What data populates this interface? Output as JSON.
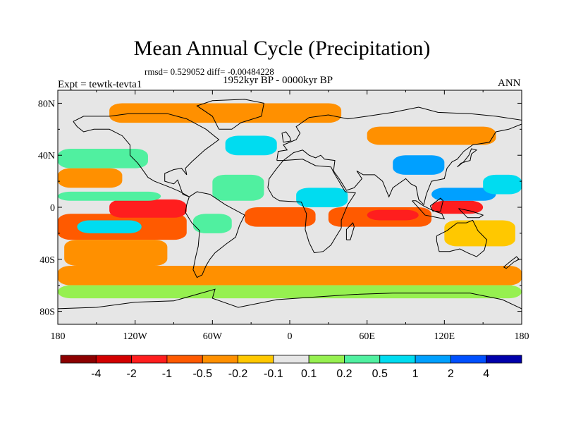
{
  "title": "Mean Annual Cycle (Precipitation)",
  "stats": "rmsd= 0.529052 diff= -0.00484228",
  "period": "1952kyr BP - 0000kyr BP",
  "experiment": "Expt = tewtk-tevta1",
  "season": "ANN",
  "axes": {
    "y_ticks": [
      {
        "label": "80N",
        "lat": 80
      },
      {
        "label": "40N",
        "lat": 40
      },
      {
        "label": "0",
        "lat": 0
      },
      {
        "label": "40S",
        "lat": -40
      },
      {
        "label": "80S",
        "lat": -80
      }
    ],
    "x_ticks": [
      {
        "label": "180",
        "lon": -180
      },
      {
        "label": "120W",
        "lon": -120
      },
      {
        "label": "60W",
        "lon": -60
      },
      {
        "label": "0",
        "lon": 0
      },
      {
        "label": "60E",
        "lon": 60
      },
      {
        "label": "120E",
        "lon": 120
      },
      {
        "label": "180",
        "lon": 180
      }
    ]
  },
  "colorbar": {
    "colors": [
      "#8c0000",
      "#d20000",
      "#ff1e1e",
      "#ff5a00",
      "#ff9000",
      "#ffc800",
      "#e6e6e6",
      "#96f050",
      "#50f0a0",
      "#00dcf0",
      "#00a0ff",
      "#0050ff",
      "#0000aa"
    ],
    "labels": [
      "-4",
      "-2",
      "-1",
      "-0.5",
      "-0.2",
      "-0.1",
      "0.1",
      "0.2",
      "0.5",
      "1",
      "2",
      "4"
    ]
  },
  "map_fields": {
    "background": "#e6e6e6",
    "coast": "#000000",
    "dry_bands": [
      {
        "name": "south-pacific-dry",
        "color": "#ff5a00",
        "lon0": -180,
        "lon1": -80,
        "lat0": -25,
        "lat1": -5
      },
      {
        "name": "south-pacific-dry-2",
        "color": "#ff9000",
        "lon0": -175,
        "lon1": -95,
        "lat0": -45,
        "lat1": -25
      },
      {
        "name": "east-pacific-dry",
        "color": "#ff1e1e",
        "lon0": -140,
        "lon1": -80,
        "lat0": -8,
        "lat1": 6
      },
      {
        "name": "south-atlantic-dry",
        "color": "#ff5a00",
        "lon0": -35,
        "lon1": 20,
        "lat0": -15,
        "lat1": 0
      },
      {
        "name": "indian-ocean-dry",
        "color": "#ff5a00",
        "lon0": 30,
        "lon1": 110,
        "lat0": -15,
        "lat1": 0
      },
      {
        "name": "indian-ocean-dry-2",
        "color": "#ff1e1e",
        "lon0": 60,
        "lon1": 100,
        "lat0": -10,
        "lat1": -2
      },
      {
        "name": "southern-ocean-dry",
        "color": "#ff9000",
        "lon0": -180,
        "lon1": 180,
        "lat0": -60,
        "lat1": -45
      },
      {
        "name": "north-pacific-dry",
        "color": "#ff9000",
        "lon0": -180,
        "lon1": -130,
        "lat0": 15,
        "lat1": 30
      },
      {
        "name": "arctic-dry",
        "color": "#ff9000",
        "lon0": -140,
        "lon1": 40,
        "lat0": 65,
        "lat1": 80
      },
      {
        "name": "siberia-dry",
        "color": "#ff9000",
        "lon0": 60,
        "lon1": 160,
        "lat0": 48,
        "lat1": 62
      },
      {
        "name": "maritime-dry",
        "color": "#ff1e1e",
        "lon0": 110,
        "lon1": 150,
        "lat0": -5,
        "lat1": 5
      },
      {
        "name": "australia-dry",
        "color": "#ffc800",
        "lon0": 120,
        "lon1": 175,
        "lat0": -30,
        "lat1": -10
      }
    ],
    "wet_bands": [
      {
        "name": "north-pacific-wet",
        "color": "#50f0a0",
        "lon0": -180,
        "lon1": -110,
        "lat0": 30,
        "lat1": 45
      },
      {
        "name": "itcz-pacific-wet",
        "color": "#50f0a0",
        "lon0": -180,
        "lon1": -100,
        "lat0": 5,
        "lat1": 12
      },
      {
        "name": "south-pacific-wet",
        "color": "#00dcf0",
        "lon0": -165,
        "lon1": -115,
        "lat0": -20,
        "lat1": -10
      },
      {
        "name": "atlantic-wet",
        "color": "#50f0a0",
        "lon0": -60,
        "lon1": -20,
        "lat0": 5,
        "lat1": 25
      },
      {
        "name": "africa-wet",
        "color": "#00dcf0",
        "lon0": 5,
        "lon1": 45,
        "lat0": 0,
        "lat1": 15
      },
      {
        "name": "asia-wet",
        "color": "#00a0ff",
        "lon0": 110,
        "lon1": 160,
        "lat0": 5,
        "lat1": 15
      },
      {
        "name": "west-pacific-wet",
        "color": "#00dcf0",
        "lon0": 150,
        "lon1": 180,
        "lat0": 10,
        "lat1": 25
      },
      {
        "name": "south-ocean-wet",
        "color": "#96f050",
        "lon0": -180,
        "lon1": 180,
        "lat0": -70,
        "lat1": -60
      },
      {
        "name": "north-atlantic-wet",
        "color": "#00dcf0",
        "lon0": -50,
        "lon1": -10,
        "lat0": 40,
        "lat1": 55
      },
      {
        "name": "south-america-wet",
        "color": "#50f0a0",
        "lon0": -75,
        "lon1": -45,
        "lat0": -20,
        "lat1": -5
      },
      {
        "name": "tibet-wet",
        "color": "#00a0ff",
        "lon0": 80,
        "lon1": 120,
        "lat0": 25,
        "lat1": 40
      }
    ]
  }
}
